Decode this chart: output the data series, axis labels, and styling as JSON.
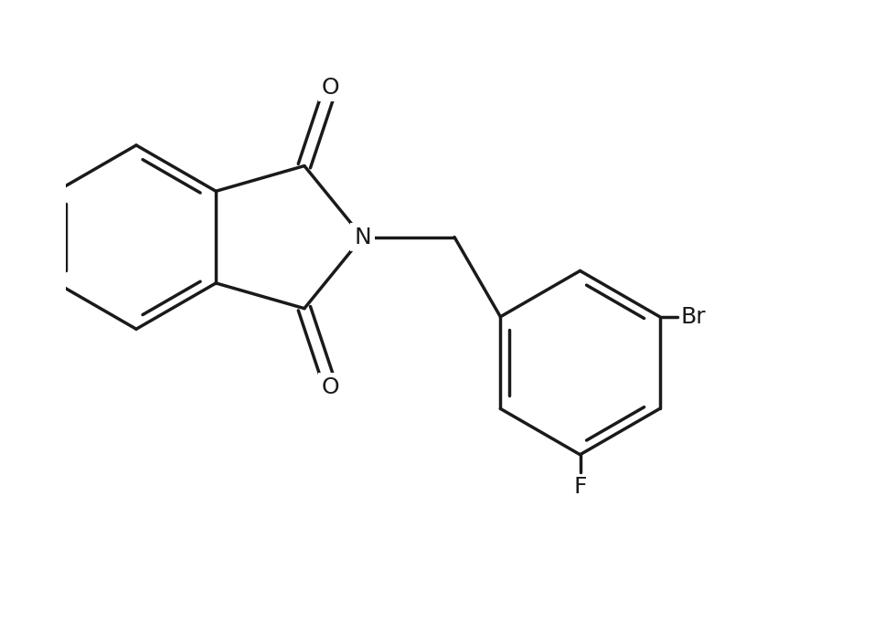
{
  "bg_color": "#ffffff",
  "line_color": "#1a1a1a",
  "line_width": 2.5,
  "font_size": 18,
  "figsize": [
    9.56,
    7.05
  ],
  "dpi": 100,
  "xlim": [
    -3.0,
    7.5
  ],
  "ylim": [
    -5.5,
    3.5
  ]
}
